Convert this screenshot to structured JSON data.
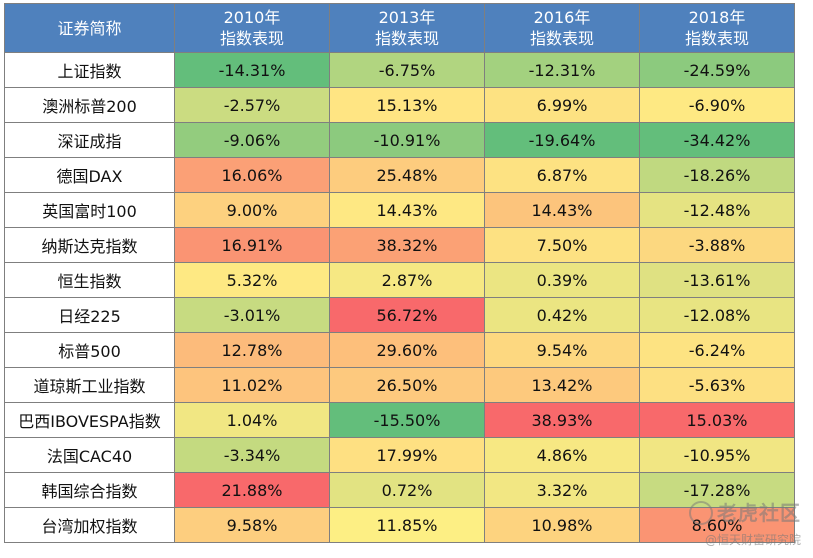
{
  "chart_data": {
    "type": "table",
    "header": {
      "name_col": "证券简称",
      "columns": [
        {
          "line1": "2010年",
          "line2": "指数表现"
        },
        {
          "line1": "2013年",
          "line2": "指数表现"
        },
        {
          "line1": "2016年",
          "line2": "指数表现"
        },
        {
          "line1": "2018年",
          "line2": "指数表现"
        }
      ]
    },
    "rows": [
      {
        "name": "上证指数",
        "cells": [
          {
            "text": "-14.31%",
            "color": "#63be7b"
          },
          {
            "text": "-6.75%",
            "color": "#b1d580"
          },
          {
            "text": "-12.31%",
            "color": "#a3d17f"
          },
          {
            "text": "-24.59%",
            "color": "#8cca7e"
          }
        ]
      },
      {
        "name": "澳洲标普200",
        "cells": [
          {
            "text": "-2.57%",
            "color": "#cbdc81"
          },
          {
            "text": "15.13%",
            "color": "#ffe583"
          },
          {
            "text": "6.99%",
            "color": "#fde282"
          },
          {
            "text": "-6.90%",
            "color": "#fee983"
          }
        ]
      },
      {
        "name": "深证成指",
        "cells": [
          {
            "text": "-9.06%",
            "color": "#93cc7e"
          },
          {
            "text": "-10.91%",
            "color": "#8cca7e"
          },
          {
            "text": "-19.64%",
            "color": "#63be7b"
          },
          {
            "text": "-34.42%",
            "color": "#63be7b"
          }
        ]
      },
      {
        "name": "德国DAX",
        "cells": [
          {
            "text": "16.06%",
            "color": "#fba076"
          },
          {
            "text": "25.48%",
            "color": "#fdcc7e"
          },
          {
            "text": "6.87%",
            "color": "#fde282"
          },
          {
            "text": "-18.26%",
            "color": "#c0d980"
          }
        ]
      },
      {
        "name": "英国富时100",
        "cells": [
          {
            "text": "9.00%",
            "color": "#fdd17f"
          },
          {
            "text": "14.43%",
            "color": "#fee883"
          },
          {
            "text": "14.43%",
            "color": "#fcc47c"
          },
          {
            "text": "-12.48%",
            "color": "#e5e382"
          }
        ]
      },
      {
        "name": "纳斯达克指数",
        "cells": [
          {
            "text": "16.91%",
            "color": "#fa9473"
          },
          {
            "text": "38.32%",
            "color": "#fba175"
          },
          {
            "text": "7.50%",
            "color": "#fde182"
          },
          {
            "text": "-3.88%",
            "color": "#fcd880"
          }
        ]
      },
      {
        "name": "恒生指数",
        "cells": [
          {
            "text": "5.32%",
            "color": "#fee983"
          },
          {
            "text": "2.87%",
            "color": "#f6e883"
          },
          {
            "text": "0.39%",
            "color": "#ebe582"
          },
          {
            "text": "-13.61%",
            "color": "#dfe182"
          }
        ]
      },
      {
        "name": "日经225",
        "cells": [
          {
            "text": "-3.01%",
            "color": "#c7db81"
          },
          {
            "text": "56.72%",
            "color": "#f8696b"
          },
          {
            "text": "0.42%",
            "color": "#ebe582"
          },
          {
            "text": "-12.08%",
            "color": "#e8e482"
          }
        ]
      },
      {
        "name": "标普500",
        "cells": [
          {
            "text": "12.78%",
            "color": "#fcbb7b"
          },
          {
            "text": "29.60%",
            "color": "#fdbf7b"
          },
          {
            "text": "9.54%",
            "color": "#fdd880"
          },
          {
            "text": "-6.24%",
            "color": "#fde382"
          }
        ]
      },
      {
        "name": "道琼斯工业指数",
        "cells": [
          {
            "text": "11.02%",
            "color": "#fdc47d"
          },
          {
            "text": "26.50%",
            "color": "#fdc97e"
          },
          {
            "text": "13.42%",
            "color": "#fdc97d"
          },
          {
            "text": "-5.63%",
            "color": "#fde082"
          }
        ]
      },
      {
        "name": "巴西IBOVESPA指数",
        "cells": [
          {
            "text": "1.04%",
            "color": "#f1e783"
          },
          {
            "text": "-15.50%",
            "color": "#63be7b"
          },
          {
            "text": "38.93%",
            "color": "#f8696b"
          },
          {
            "text": "15.03%",
            "color": "#f8696b"
          }
        ]
      },
      {
        "name": "法国CAC40",
        "cells": [
          {
            "text": "-3.34%",
            "color": "#c4da80"
          },
          {
            "text": "17.99%",
            "color": "#fee082"
          },
          {
            "text": "4.86%",
            "color": "#f7e883"
          },
          {
            "text": "-10.95%",
            "color": "#f1e683"
          }
        ]
      },
      {
        "name": "韩国综合指数",
        "cells": [
          {
            "text": "21.88%",
            "color": "#f8696b"
          },
          {
            "text": "0.72%",
            "color": "#e2e382"
          },
          {
            "text": "3.32%",
            "color": "#f2e783"
          },
          {
            "text": "-17.28%",
            "color": "#c7db81"
          }
        ]
      },
      {
        "name": "台湾加权指数",
        "cells": [
          {
            "text": "9.58%",
            "color": "#fdce7f"
          },
          {
            "text": "11.85%",
            "color": "#fdef84"
          },
          {
            "text": "10.98%",
            "color": "#fdd37f"
          },
          {
            "text": "8.60%",
            "color": "#fa9473"
          }
        ]
      }
    ]
  },
  "watermark": {
    "main": "老虎社区",
    "sub": "@恒天财富研究院"
  }
}
